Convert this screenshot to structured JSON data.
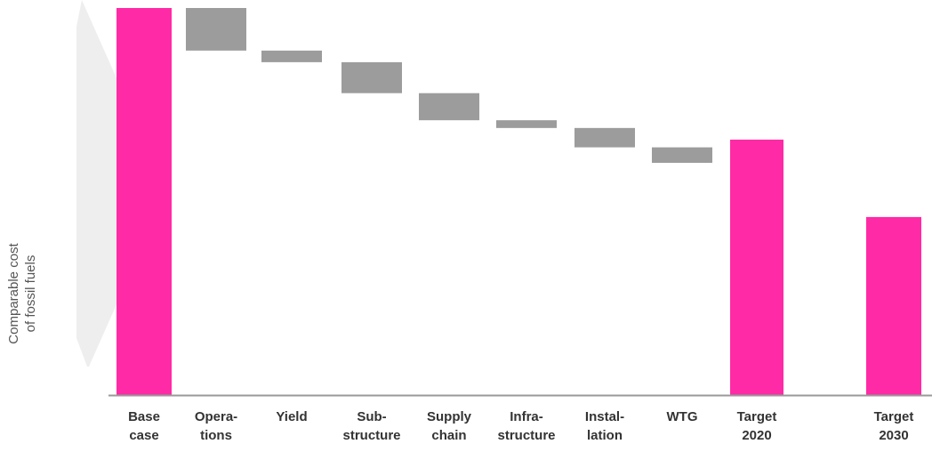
{
  "chart_data": {
    "type": "bar",
    "subtype": "waterfall",
    "title": "",
    "xlabel": "",
    "ylabel_lines": [
      "Comparable cost",
      "of fossil fuels"
    ],
    "ylim": [
      0,
      100
    ],
    "grid": false,
    "legend": "none",
    "colors": {
      "total": "#ff2aa5",
      "step": "#9c9c9c",
      "axis": "#9a9a9a",
      "wedge": "#e8e8e8"
    },
    "categories": [
      {
        "lines": [
          "Base",
          "case"
        ],
        "kind": "total",
        "start": 0,
        "end": 100
      },
      {
        "lines": [
          "Opera-",
          "tions"
        ],
        "kind": "step",
        "start": 100,
        "end": 89
      },
      {
        "lines": [
          "Yield"
        ],
        "kind": "step",
        "start": 89,
        "end": 86
      },
      {
        "lines": [
          "Sub-",
          "structure"
        ],
        "kind": "step",
        "start": 86,
        "end": 78
      },
      {
        "lines": [
          "Supply",
          "chain"
        ],
        "kind": "step",
        "start": 78,
        "end": 71
      },
      {
        "lines": [
          "Infra-",
          "structure"
        ],
        "kind": "step",
        "start": 71,
        "end": 69
      },
      {
        "lines": [
          "Instal-",
          "lation"
        ],
        "kind": "step",
        "start": 69,
        "end": 64
      },
      {
        "lines": [
          "WTG"
        ],
        "kind": "step",
        "start": 64,
        "end": 60
      },
      {
        "lines": [
          "Target",
          "2020"
        ],
        "kind": "total",
        "start": 0,
        "end": 66
      },
      {
        "lines": [
          "Target",
          "2030"
        ],
        "kind": "total",
        "start": 0,
        "end": 46
      }
    ]
  }
}
